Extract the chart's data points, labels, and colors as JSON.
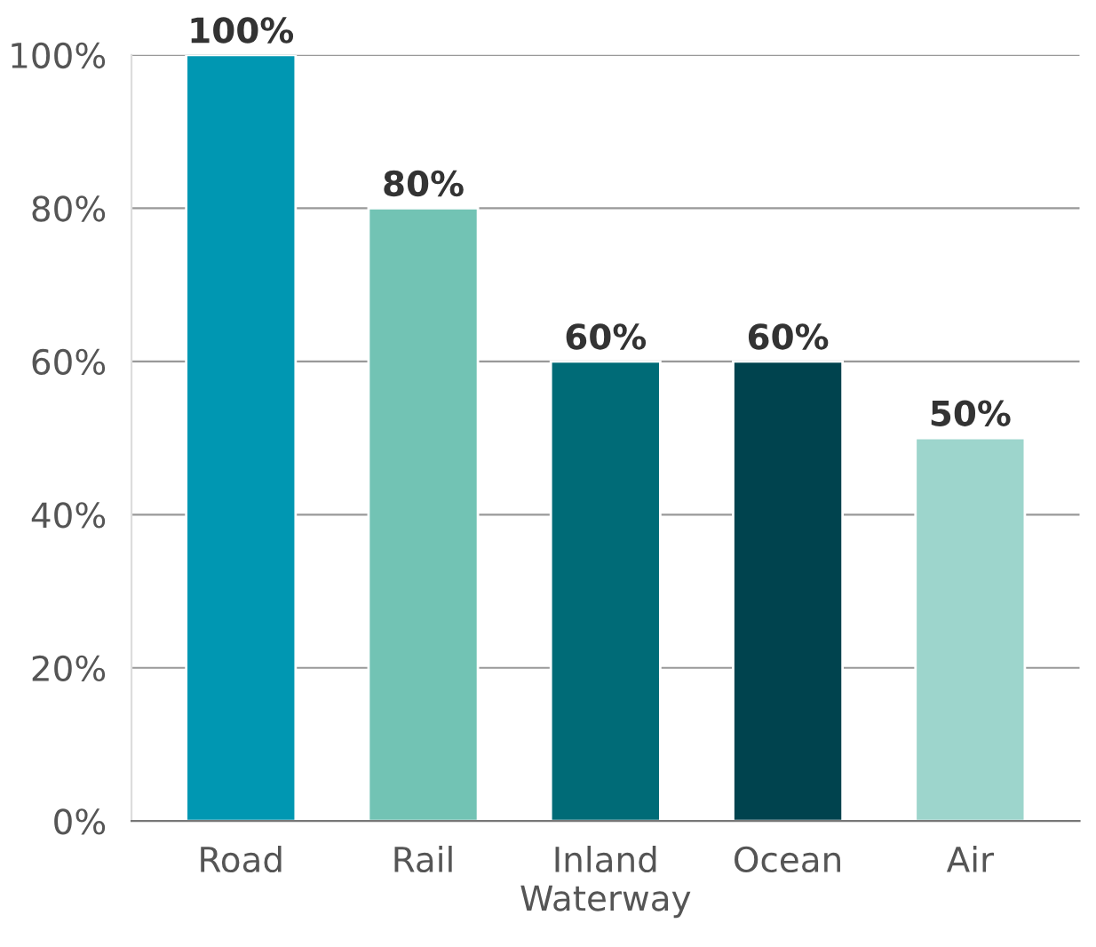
{
  "chart_data": {
    "type": "bar",
    "categories": [
      "Road",
      "Rail",
      "Inland\nWaterway",
      "Ocean",
      "Air"
    ],
    "values": [
      100,
      80,
      60,
      60,
      50
    ],
    "value_labels": [
      "100%",
      "80%",
      "60%",
      "60%",
      "50%"
    ],
    "colors": [
      "#0097b2",
      "#72c3b4",
      "#006b77",
      "#00434e",
      "#9dd5cc"
    ],
    "ylim": [
      0,
      100
    ],
    "yticks": [
      {
        "value": 0,
        "label": "0%"
      },
      {
        "value": 20,
        "label": "20%"
      },
      {
        "value": 40,
        "label": "40%"
      },
      {
        "value": 60,
        "label": "60%"
      },
      {
        "value": 80,
        "label": "80%"
      },
      {
        "value": 100,
        "label": "100%"
      }
    ],
    "grid": "y"
  }
}
